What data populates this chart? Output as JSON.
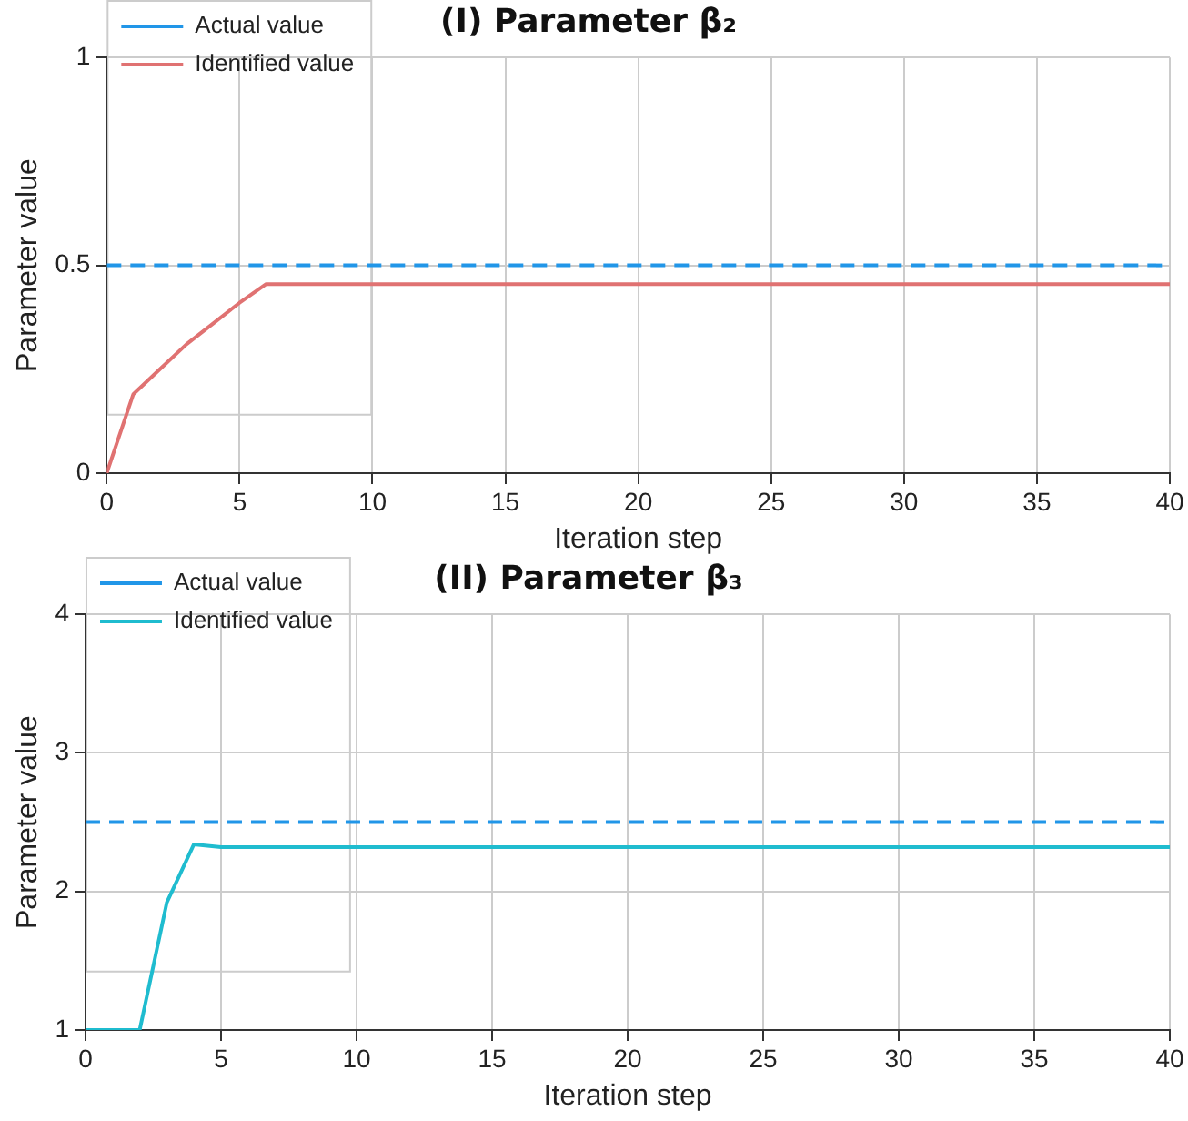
{
  "chart_data": [
    {
      "type": "line",
      "title": "(I) Parameter β₂",
      "xlabel": "Iteration step",
      "ylabel": "Parameter value",
      "xlim": [
        0,
        40
      ],
      "xticks": [
        0,
        5,
        10,
        15,
        20,
        25,
        30,
        35,
        40
      ],
      "ylim": [
        0,
        1
      ],
      "yticks": [
        0,
        0.5,
        1
      ],
      "grid": true,
      "legend": "top left",
      "series": [
        {
          "name": "Actual value",
          "color": "#2196e8",
          "line_style": "dashed",
          "x": [
            0,
            40
          ],
          "values": [
            0.5,
            0.5
          ]
        },
        {
          "name": "Identified value",
          "color": "#e07272",
          "line_style": "solid",
          "x": [
            0,
            1,
            2,
            3,
            4,
            5,
            6,
            40
          ],
          "values": [
            0,
            0.19,
            0.25,
            0.31,
            0.36,
            0.41,
            0.455,
            0.455
          ]
        }
      ]
    },
    {
      "type": "line",
      "title": "(II) Parameter β₃",
      "xlabel": "Iteration step",
      "ylabel": "Parameter value",
      "xlim": [
        0,
        40
      ],
      "xticks": [
        0,
        5,
        10,
        15,
        20,
        25,
        30,
        35,
        40
      ],
      "ylim": [
        1,
        4
      ],
      "yticks": [
        1,
        2,
        3,
        4
      ],
      "grid": true,
      "legend": "top left",
      "series": [
        {
          "name": "Actual value",
          "color": "#2196e8",
          "line_style": "dashed",
          "x": [
            0,
            40
          ],
          "values": [
            2.5,
            2.5
          ]
        },
        {
          "name": "Identified value",
          "color": "#1fbccf",
          "line_style": "solid",
          "x": [
            0,
            1,
            2,
            3,
            4,
            5,
            40
          ],
          "values": [
            1,
            1,
            1,
            1.92,
            2.34,
            2.32,
            2.32
          ]
        }
      ]
    }
  ]
}
